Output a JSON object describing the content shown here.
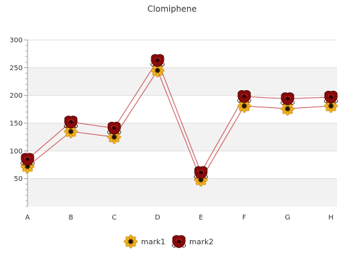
{
  "chart_data": {
    "type": "line",
    "title": "Clomiphene",
    "categories": [
      "A",
      "B",
      "C",
      "D",
      "E",
      "F",
      "G",
      "H"
    ],
    "ylim": [
      0,
      300
    ],
    "yticks": [
      50,
      100,
      150,
      200,
      250,
      300
    ],
    "grid": true,
    "legend_position": "bottom",
    "series": [
      {
        "name": "mark1",
        "values": [
          72,
          135,
          125,
          245,
          48,
          181,
          176,
          181
        ],
        "color": "#c94a4a",
        "marker": "sunflower-icon"
      },
      {
        "name": "mark2",
        "values": [
          85,
          152,
          141,
          263,
          61,
          198,
          194,
          197
        ],
        "color": "#c94a4a",
        "marker": "rose-icon"
      }
    ]
  }
}
